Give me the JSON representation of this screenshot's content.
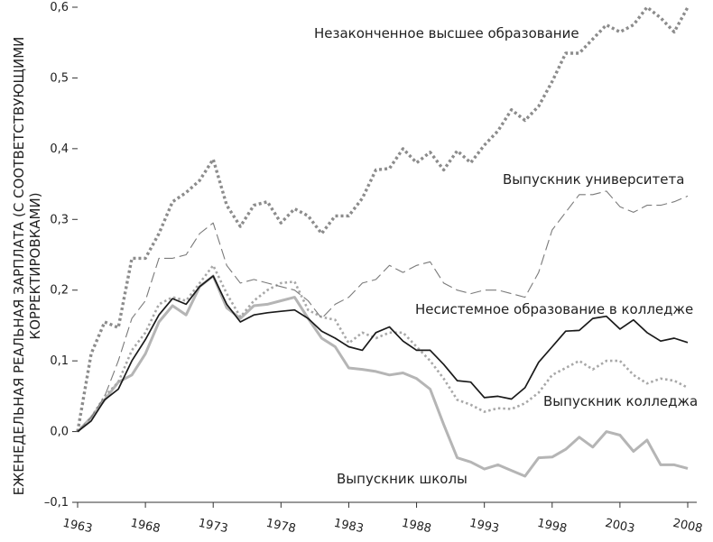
{
  "chart_data": {
    "type": "line",
    "title": "",
    "xlabel": "",
    "ylabel": [
      "ЕЖЕНЕДЕЛЬНАЯ РЕАЛЬНАЯ ЗАРПЛАТА (С СООТВЕТСТВУЮЩИМИ",
      "КОРРЕКТИРОВКАМИ)"
    ],
    "xlim": [
      1963,
      2008
    ],
    "ylim": [
      -0.1,
      0.6
    ],
    "xticks": [
      1963,
      1968,
      1973,
      1978,
      1983,
      1988,
      1993,
      1998,
      2003,
      2008
    ],
    "yticks": [
      -0.1,
      0.0,
      0.1,
      0.2,
      0.3,
      0.4,
      0.5,
      0.6
    ],
    "ytick_labels": [
      "–0,1",
      "0,0",
      "0,1",
      "0,2",
      "0,3",
      "0,4",
      "0,5",
      "0,6"
    ],
    "grid": false,
    "x": [
      1963,
      1964,
      1965,
      1966,
      1967,
      1968,
      1969,
      1970,
      1971,
      1972,
      1973,
      1974,
      1975,
      1976,
      1977,
      1978,
      1979,
      1980,
      1981,
      1982,
      1983,
      1984,
      1985,
      1986,
      1987,
      1988,
      1989,
      1990,
      1991,
      1992,
      1993,
      1994,
      1995,
      1996,
      1997,
      1998,
      1999,
      2000,
      2001,
      2002,
      2003,
      2004,
      2005,
      2006,
      2007,
      2008
    ],
    "series": [
      {
        "name": "Незаконченное высшее образование",
        "style": "dotted-heavy",
        "color": "#8c8c8c",
        "values": [
          0.0,
          0.11,
          0.155,
          0.147,
          0.245,
          0.245,
          0.28,
          0.325,
          0.338,
          0.355,
          0.385,
          0.32,
          0.29,
          0.32,
          0.325,
          0.295,
          0.315,
          0.305,
          0.28,
          0.305,
          0.305,
          0.33,
          0.37,
          0.372,
          0.4,
          0.38,
          0.395,
          0.37,
          0.397,
          0.38,
          0.405,
          0.425,
          0.455,
          0.44,
          0.46,
          0.495,
          0.535,
          0.535,
          0.555,
          0.575,
          0.565,
          0.575,
          0.6,
          0.585,
          0.565,
          0.6
        ]
      },
      {
        "name": "Выпускник университета",
        "style": "dashed",
        "color": "#7a7a7a",
        "values": [
          0.0,
          0.02,
          0.05,
          0.1,
          0.16,
          0.185,
          0.245,
          0.245,
          0.25,
          0.28,
          0.295,
          0.235,
          0.21,
          0.215,
          0.21,
          0.205,
          0.2,
          0.185,
          0.16,
          0.18,
          0.19,
          0.21,
          0.215,
          0.235,
          0.225,
          0.235,
          0.24,
          0.21,
          0.2,
          0.195,
          0.2,
          0.2,
          0.195,
          0.19,
          0.225,
          0.285,
          0.31,
          0.335,
          0.335,
          0.34,
          0.318,
          0.31,
          0.32,
          0.32,
          0.325,
          0.333
        ]
      },
      {
        "name": "Несистемное образование в колледже",
        "style": "solid-dark",
        "color": "#1a1a1a",
        "values": [
          0.0,
          0.015,
          0.045,
          0.06,
          0.1,
          0.13,
          0.165,
          0.188,
          0.18,
          0.205,
          0.22,
          0.18,
          0.155,
          0.165,
          0.168,
          0.17,
          0.172,
          0.16,
          0.142,
          0.132,
          0.12,
          0.115,
          0.14,
          0.148,
          0.128,
          0.115,
          0.115,
          0.095,
          0.072,
          0.07,
          0.048,
          0.05,
          0.046,
          0.062,
          0.098,
          0.12,
          0.142,
          0.143,
          0.16,
          0.163,
          0.145,
          0.158,
          0.14,
          0.128,
          0.132,
          0.126
        ]
      },
      {
        "name": "Выпускник колледжа",
        "style": "dotted-light",
        "color": "#a8a8a8",
        "values": [
          0.0,
          0.02,
          0.05,
          0.07,
          0.115,
          0.14,
          0.18,
          0.19,
          0.185,
          0.21,
          0.235,
          0.195,
          0.162,
          0.185,
          0.2,
          0.21,
          0.212,
          0.172,
          0.162,
          0.158,
          0.125,
          0.14,
          0.132,
          0.14,
          0.14,
          0.12,
          0.1,
          0.075,
          0.045,
          0.038,
          0.028,
          0.033,
          0.032,
          0.04,
          0.055,
          0.08,
          0.09,
          0.1,
          0.088,
          0.1,
          0.1,
          0.08,
          0.068,
          0.075,
          0.072,
          0.062
        ]
      },
      {
        "name": "Выпускник школы",
        "style": "solid-light",
        "color": "#b5b5b5",
        "values": [
          0.0,
          0.02,
          0.045,
          0.07,
          0.08,
          0.11,
          0.155,
          0.178,
          0.165,
          0.205,
          0.22,
          0.175,
          0.16,
          0.178,
          0.18,
          0.185,
          0.19,
          0.16,
          0.132,
          0.12,
          0.09,
          0.088,
          0.085,
          0.08,
          0.083,
          0.075,
          0.06,
          0.01,
          -0.037,
          -0.043,
          -0.053,
          -0.047,
          -0.055,
          -0.063,
          -0.037,
          -0.036,
          -0.025,
          -0.008,
          -0.022,
          0.0,
          -0.005,
          -0.028,
          -0.012,
          -0.047,
          -0.047,
          -0.052
        ]
      }
    ],
    "annotations": [
      {
        "text": "Незаконченное высшее образование",
        "series": 0
      },
      {
        "text": "Выпускник университета",
        "series": 1
      },
      {
        "text": "Несистемное образование в колледже",
        "series": 2
      },
      {
        "text": "Выпускник колледжа",
        "series": 3
      },
      {
        "text": "Выпускник школы",
        "series": 4
      }
    ]
  }
}
